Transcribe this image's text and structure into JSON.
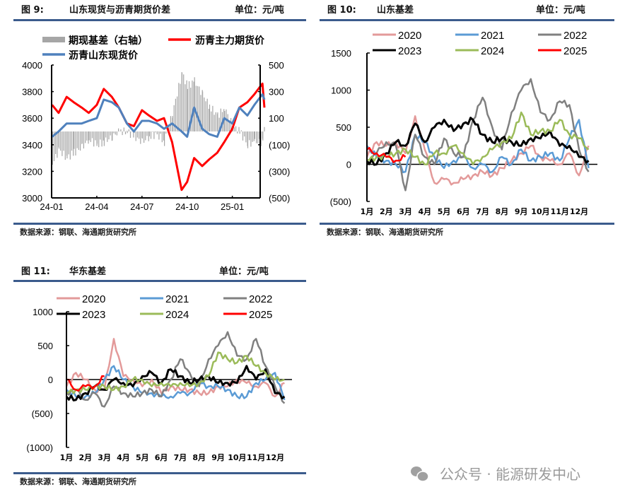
{
  "colors": {
    "rule": "#3b5b8c",
    "negative_label": "#ff0000"
  },
  "figures": [
    {
      "label": "图 9:",
      "title": "山东现货与沥青期货价差",
      "unit": "单位：元/吨",
      "source": "数据来源：钢联、海通期货研究所"
    },
    {
      "label": "图 10:",
      "title": "山东基差",
      "unit": "单位：元/吨",
      "source": "数据来源：钢联、海通期货研究所"
    },
    {
      "label": "图 11:",
      "title": "华东基差",
      "unit": "单位：元/吨",
      "source": "数据来源：钢联、海通期货研究所"
    }
  ],
  "watermark": {
    "icon": "wechat-icon",
    "text": "公众号 · 能源研发中心"
  },
  "chart_data": [
    {
      "type": "bar+line",
      "legend_placement": "top",
      "xticks": [
        "24-01",
        "24-04",
        "24-07",
        "24-10",
        "25-01"
      ],
      "yticks_left": [
        "4000",
        "3800",
        "3600",
        "3400",
        "3200",
        "3000"
      ],
      "yticks_right": [
        "500",
        "300",
        "100",
        "(100)",
        "(300)",
        "(500)"
      ],
      "ylim_left": [
        3000,
        4000
      ],
      "ylim_right": [
        -500,
        500
      ],
      "x": [
        "2024-01-02",
        "2024-01-15",
        "2024-02-01",
        "2024-02-15",
        "2024-03-01",
        "2024-03-15",
        "2024-04-01",
        "2024-04-15",
        "2024-05-01",
        "2024-05-15",
        "2024-06-01",
        "2024-06-15",
        "2024-07-01",
        "2024-07-15",
        "2024-08-01",
        "2024-08-15",
        "2024-09-01",
        "2024-09-20",
        "2024-10-01",
        "2024-10-15",
        "2024-11-01",
        "2024-11-15",
        "2024-12-01",
        "2024-12-15",
        "2025-01-01",
        "2025-01-15",
        "2025-02-01",
        "2025-02-15",
        "2025-03-01",
        "2025-03-05"
      ],
      "series": [
        {
          "name": "期现基差（右轴）",
          "kind": "bar",
          "axis": "right",
          "color": "#a6a6a6",
          "values": [
            -240,
            -140,
            -200,
            -160,
            -120,
            -60,
            -100,
            -80,
            -40,
            0,
            0,
            -40,
            -80,
            -40,
            -20,
            -80,
            140,
            440,
            340,
            380,
            280,
            190,
            120,
            180,
            40,
            0,
            -100,
            -80,
            -80,
            60
          ]
        },
        {
          "name": "沥青主力期货价",
          "kind": "line",
          "axis": "left",
          "color": "#ff0000",
          "values": [
            3700,
            3640,
            3760,
            3720,
            3680,
            3640,
            3700,
            3820,
            3760,
            3680,
            3560,
            3540,
            3660,
            3620,
            3580,
            3600,
            3420,
            3060,
            3120,
            3300,
            3240,
            3290,
            3340,
            3420,
            3520,
            3680,
            3720,
            3780,
            3860,
            3680
          ]
        },
        {
          "name": "沥青山东现货价",
          "kind": "line",
          "axis": "left",
          "color": "#4f81bd",
          "values": [
            3460,
            3500,
            3560,
            3560,
            3560,
            3580,
            3600,
            3740,
            3720,
            3680,
            3560,
            3500,
            3580,
            3580,
            3560,
            3520,
            3560,
            3500,
            3460,
            3680,
            3520,
            3480,
            3460,
            3600,
            3560,
            3680,
            3620,
            3700,
            3780,
            3740
          ]
        }
      ]
    },
    {
      "type": "line",
      "legend_placement": "top",
      "xticks": [
        "1月",
        "2月",
        "3月",
        "4月",
        "5月",
        "6月",
        "7月",
        "8月",
        "9月",
        "10月",
        "11月",
        "12月"
      ],
      "yticks": [
        "1500",
        "1000",
        "500",
        "0",
        "(500)"
      ],
      "ylim": [
        -500,
        1500
      ],
      "x_months": [
        1,
        1.5,
        2,
        2.5,
        3,
        3.5,
        4,
        4.5,
        5,
        5.5,
        6,
        6.5,
        7,
        7.5,
        8,
        8.5,
        9,
        9.5,
        10,
        10.5,
        11,
        11.5,
        12,
        12.5
      ],
      "series": [
        {
          "name": "2020",
          "color": "#e39a9a",
          "values": [
            100,
            300,
            250,
            300,
            150,
            650,
            200,
            -250,
            -200,
            -250,
            -200,
            -150,
            -100,
            -150,
            -50,
            50,
            150,
            250,
            100,
            50,
            0,
            150,
            -150,
            250
          ]
        },
        {
          "name": "2021",
          "color": "#5b9bd5",
          "values": [
            250,
            100,
            50,
            0,
            -100,
            400,
            300,
            100,
            -50,
            50,
            100,
            -50,
            0,
            -100,
            100,
            0,
            200,
            50,
            100,
            150,
            50,
            350,
            600,
            -50
          ]
        },
        {
          "name": "2022",
          "color": "#808080",
          "values": [
            0,
            150,
            300,
            250,
            -350,
            400,
            100,
            0,
            350,
            150,
            100,
            600,
            900,
            500,
            200,
            700,
            1000,
            1150,
            700,
            600,
            850,
            800,
            200,
            -100
          ]
        },
        {
          "name": "2023",
          "color": "#000000",
          "values": [
            50,
            0,
            150,
            300,
            250,
            550,
            300,
            500,
            600,
            450,
            550,
            600,
            400,
            300,
            350,
            300,
            250,
            350,
            350,
            450,
            250,
            250,
            100,
            50
          ]
        },
        {
          "name": "2024",
          "color": "#9bbb59",
          "values": [
            50,
            100,
            100,
            150,
            200,
            100,
            0,
            150,
            150,
            250,
            150,
            0,
            100,
            200,
            300,
            350,
            700,
            400,
            450,
            450,
            600,
            400,
            350,
            200
          ]
        },
        {
          "name": "2025",
          "color": "#ff0000",
          "values": [
            200,
            150,
            100,
            50,
            100
          ]
        }
      ]
    },
    {
      "type": "line",
      "legend_placement": "top",
      "xticks": [
        "1月",
        "2月",
        "3月",
        "4月",
        "5月",
        "6月",
        "7月",
        "8月",
        "9月",
        "10月",
        "11月",
        "12月"
      ],
      "yticks": [
        "1000",
        "500",
        "0",
        "(500)",
        "(1000)"
      ],
      "ylim": [
        -1000,
        1000
      ],
      "x_months": [
        1,
        1.5,
        2,
        2.5,
        3,
        3.5,
        4,
        4.5,
        5,
        5.5,
        6,
        6.5,
        7,
        7.5,
        8,
        8.5,
        9,
        9.5,
        10,
        10.5,
        11,
        11.5,
        12,
        12.5
      ],
      "series": [
        {
          "name": "2020",
          "color": "#e39a9a",
          "values": [
            -100,
            100,
            0,
            -150,
            -150,
            600,
            50,
            0,
            -100,
            0,
            -200,
            -100,
            -150,
            -150,
            -200,
            -200,
            -100,
            -100,
            0,
            -50,
            -100,
            -50,
            -250,
            -50
          ]
        },
        {
          "name": "2021",
          "color": "#5b9bd5",
          "values": [
            -150,
            -250,
            -250,
            -200,
            0,
            200,
            0,
            -100,
            -200,
            -200,
            -250,
            -250,
            -200,
            -200,
            -50,
            -100,
            -100,
            -150,
            -250,
            -250,
            -50,
            0,
            100,
            -300
          ]
        },
        {
          "name": "2022",
          "color": "#808080",
          "values": [
            -200,
            -150,
            -300,
            -200,
            -400,
            -100,
            -200,
            -250,
            -200,
            -150,
            -250,
            0,
            300,
            100,
            -100,
            300,
            500,
            700,
            350,
            300,
            600,
            200,
            -100,
            -350
          ]
        },
        {
          "name": "2023",
          "color": "#000000",
          "values": [
            -250,
            -300,
            -200,
            -100,
            -150,
            0,
            -50,
            -100,
            50,
            100,
            -50,
            150,
            50,
            -50,
            0,
            50,
            -50,
            -50,
            -50,
            200,
            0,
            150,
            -200,
            -250
          ]
        },
        {
          "name": "2024",
          "color": "#9bbb59",
          "values": [
            -200,
            -150,
            -150,
            -100,
            -100,
            -150,
            -100,
            0,
            0,
            -100,
            -50,
            -100,
            -50,
            -100,
            -50,
            50,
            400,
            300,
            250,
            350,
            200,
            100,
            0,
            0
          ]
        },
        {
          "name": "2025",
          "color": "#ff0000",
          "values": [
            0,
            -150,
            -100,
            -100,
            50
          ]
        }
      ]
    }
  ]
}
